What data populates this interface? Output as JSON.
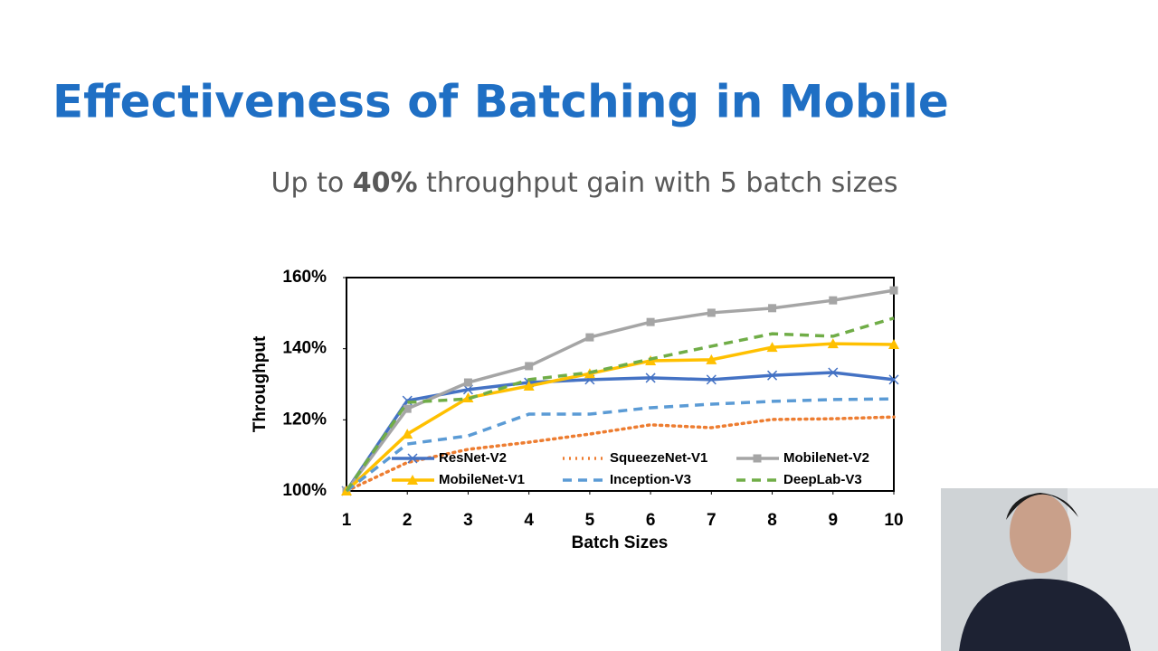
{
  "slide": {
    "title": "Effectiveness of Batching in Mobile",
    "subtitle": [
      "Up to ",
      "40%",
      " throughput gain with 5 batch sizes"
    ]
  },
  "chart_data": {
    "type": "line",
    "xlabel": "Batch Sizes",
    "ylabel": "Throughput",
    "x": [
      1,
      2,
      3,
      4,
      5,
      6,
      7,
      8,
      9,
      10
    ],
    "xlim": [
      1,
      10
    ],
    "xticks": [
      1,
      2,
      3,
      4,
      5,
      6,
      7,
      8,
      9,
      10
    ],
    "ylim": [
      100,
      160
    ],
    "yticks": [
      {
        "value": 100,
        "label": "100%"
      },
      {
        "value": 120,
        "label": "120%"
      },
      {
        "value": 140,
        "label": "140%"
      },
      {
        "value": 160,
        "label": "160%"
      }
    ],
    "legend": "bottom",
    "series": [
      {
        "name": "ResNet-V2",
        "color": "#4472c4",
        "dash": "solid",
        "marker": "x",
        "values": [
          100,
          125.4,
          128.5,
          130.5,
          131.3,
          131.8,
          131.3,
          132.5,
          133.3,
          131.3
        ]
      },
      {
        "name": "SqueezeNet-V1",
        "color": "#ed7d31",
        "dash": "dotted",
        "marker": "none",
        "values": [
          100,
          108,
          111.7,
          113.7,
          116,
          118.6,
          117.8,
          120.1,
          120.3,
          120.8
        ]
      },
      {
        "name": "MobileNet-V2",
        "color": "#a5a5a5",
        "dash": "solid",
        "marker": "square",
        "values": [
          100,
          123.1,
          130.5,
          135.1,
          143.2,
          147.5,
          150.1,
          151.4,
          153.6,
          156.4
        ]
      },
      {
        "name": "MobileNet-V1",
        "color": "#ffc000",
        "dash": "solid",
        "marker": "triangle",
        "values": [
          100,
          116,
          126.2,
          129.5,
          133,
          136.6,
          136.9,
          140.4,
          141.4,
          141.2
        ]
      },
      {
        "name": "Inception-V3",
        "color": "#5b9bd5",
        "dash": "dashed",
        "marker": "none",
        "values": [
          100,
          113.2,
          115.5,
          121.6,
          121.6,
          123.4,
          124.4,
          125.2,
          125.7,
          125.9
        ]
      },
      {
        "name": "DeepLab-V3",
        "color": "#70ad47",
        "dash": "dashed",
        "marker": "none",
        "values": [
          100,
          124.9,
          125.9,
          131.3,
          133.3,
          137.1,
          140.7,
          144.2,
          143.5,
          148.6
        ]
      }
    ]
  }
}
